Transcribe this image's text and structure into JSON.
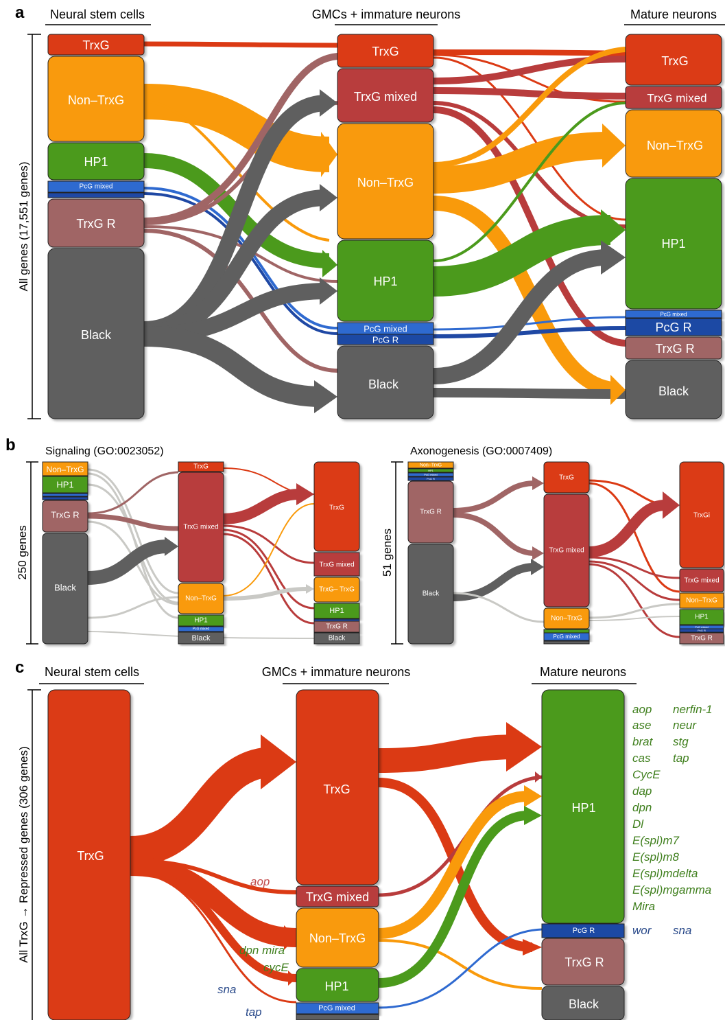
{
  "colors": {
    "trxg": "#db3a14",
    "trxg_mixed": "#b83c3c",
    "non_trxg": "#f99a0b",
    "hp1": "#4b9a1c",
    "pcg_mixed": "#2f6ad0",
    "pcg_r": "#1f48a4",
    "trxg_r": "#a06565",
    "black": "#5f5f5f",
    "grey_flow": "#c9c9c5"
  },
  "panel_a": {
    "letter": "a",
    "stage1": "Neural stem cells",
    "stage2": "GMCs + immature neurons",
    "stage3": "Mature neurons",
    "y_label": "All genes (17,551 genes)",
    "col1": {
      "trxg": "TrxG",
      "non_trxg": "Non–TrxG",
      "hp1": "HP1",
      "pcg_mixed": "PcG mixed",
      "trxg_r": "TrxG R",
      "black": "Black"
    },
    "col2": {
      "trxg": "TrxG",
      "trxg_mixed": "TrxG mixed",
      "non_trxg": "Non–TrxG",
      "hp1": "HP1",
      "pcg_mixed": "PcG mixed",
      "pcg_r": "PcG R",
      "black": "Black"
    },
    "col3": {
      "trxg": "TrxG",
      "trxg_mixed": "TrxG mixed",
      "non_trxg": "Non–TrxG",
      "hp1": "HP1",
      "pcg_mixed": "PcG mixed",
      "pcg_r": "PcG R",
      "trxg_r": "TrxG R",
      "black": "Black"
    }
  },
  "panel_b": {
    "letter": "b",
    "left": {
      "title": "Signaling (GO:0023052)",
      "y_label": "250 genes",
      "col1": {
        "non_trxg": "Non–TrxG",
        "hp1": "HP1",
        "trxg_r": "TrxG R",
        "black": "Black"
      },
      "col2": {
        "trxg": "TrxG",
        "trxg_mixed": "TrxG mixed",
        "non_trxg": "Non–TrxG",
        "hp1": "HP1",
        "pcg_mixed": "PcG mixed",
        "black": "Black"
      },
      "col3": {
        "trxg": "TrxG",
        "trxg_mixed": "TrxG mixed",
        "non_trxg": "TrxG– TrxG",
        "hp1": "HP1",
        "trxg_r": "TrxG R",
        "black": "Black"
      }
    },
    "right": {
      "title": "Axonogenesis (GO:0007409)",
      "y_label": "51 genes",
      "col1": {
        "non_trxg": "Non–TrxG",
        "hp1": "HP1",
        "pcg_mixed": "PcG mixed",
        "pcg_r": "PcG R",
        "trxg_r": "TrxG R",
        "black": "Black"
      },
      "col2": {
        "trxg": "TrxG",
        "trxg_mixed": "TrxG mixed",
        "non_trxg": "Non–TrxG",
        "pcg_mixed": "PcG mixed"
      },
      "col3": {
        "trxg": "TrxGi",
        "trxg_mixed": "TrxG mixed",
        "non_trxg": "Non–TrxG",
        "hp1": "HP1",
        "pcg_mixed": "PcG mixed",
        "pcg_r": "PcG R",
        "trxg_r": "TrxG R"
      }
    }
  },
  "panel_c": {
    "letter": "c",
    "stage1": "Neural stem cells",
    "stage2": "GMCs + immature neurons",
    "stage3": "Mature neurons",
    "y_label": "All TrxG → Repressed genes (306 genes)",
    "col1": {
      "trxg": "TrxG"
    },
    "col2": {
      "trxg": "TrxG",
      "trxg_mixed": "TrxG mixed",
      "non_trxg": "Non–TrxG",
      "hp1": "HP1",
      "pcg_mixed": "PcG mixed"
    },
    "col3": {
      "hp1": "HP1",
      "pcg_r": "PcG R",
      "trxg_r": "TrxG R",
      "black": "Black"
    },
    "flow_labels": {
      "aop": "aop",
      "dpn_mira": "dpn mira",
      "cyce": "cycE",
      "sna": "sna",
      "tap": "tap"
    },
    "hp1_genes_col1": [
      "aop",
      "ase",
      "brat",
      "cas",
      "CycE",
      "dap",
      "dpn",
      "Dl",
      "E(spl)m7",
      "E(spl)m8",
      "E(spl)mdelta",
      "E(spl)mgamma",
      "Mira"
    ],
    "hp1_genes_col2": [
      "nerfin-1",
      "neur",
      "stg",
      "tap"
    ],
    "pcg_r_genes": [
      "wor",
      "sna"
    ]
  }
}
